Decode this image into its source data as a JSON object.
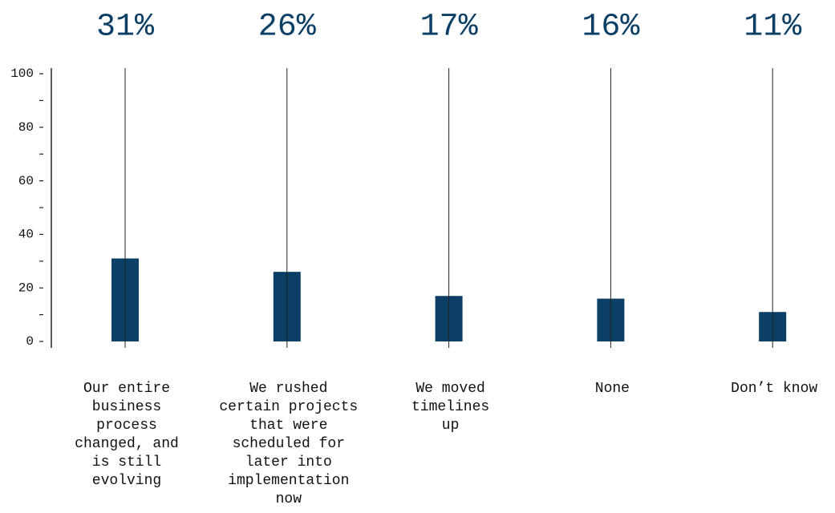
{
  "chart_data": {
    "type": "bar",
    "categories": [
      "Our entire business process changed, and is still evolving",
      "We rushed certain projects that were scheduled for later into implementation now",
      "We moved timelines up",
      "None",
      "Don’t know"
    ],
    "values": [
      31,
      26,
      17,
      16,
      11
    ],
    "value_labels": [
      "31%",
      "26%",
      "17%",
      "16%",
      "11%"
    ],
    "color": "#0b3f66",
    "ylim": [
      0,
      100
    ],
    "yticks": [
      0,
      20,
      40,
      60,
      80,
      100
    ],
    "minor_yticks": [
      10,
      30,
      50,
      70,
      90
    ]
  }
}
